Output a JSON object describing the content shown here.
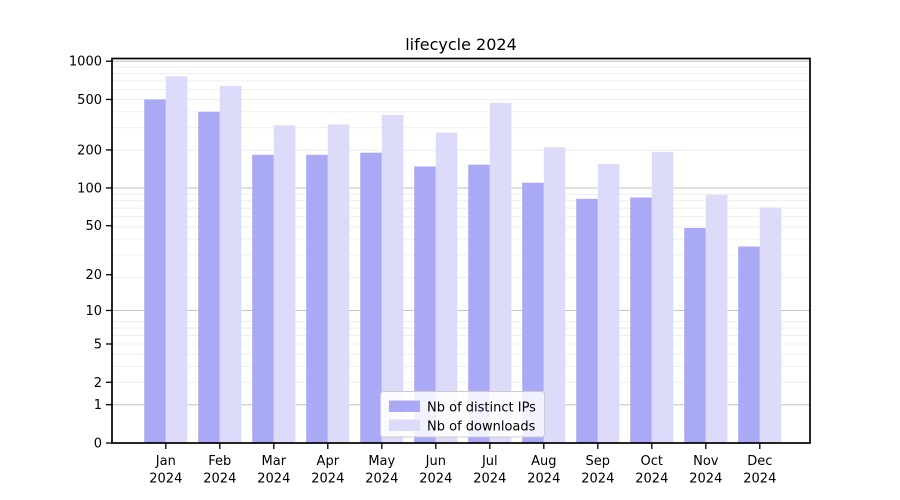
{
  "chart_data": {
    "type": "bar",
    "title": "lifecycle 2024",
    "categories": [
      "Jan",
      "Feb",
      "Mar",
      "Apr",
      "May",
      "Jun",
      "Jul",
      "Aug",
      "Sep",
      "Oct",
      "Nov",
      "Dec"
    ],
    "category_year": "2024",
    "series": [
      {
        "name": "Nb of distinct IPs",
        "color": "#a9a9f6",
        "values": [
          500,
          400,
          183,
          183,
          190,
          148,
          153,
          110,
          82,
          84,
          48,
          34
        ]
      },
      {
        "name": "Nb of downloads",
        "color": "#dcdcfa",
        "values": [
          760,
          640,
          313,
          318,
          377,
          274,
          470,
          210,
          155,
          193,
          88,
          70
        ]
      }
    ],
    "xlabel": "",
    "ylabel": "",
    "y_axis": {
      "ticks": [
        0,
        1,
        2,
        5,
        10,
        20,
        50,
        100,
        200,
        500,
        1000
      ],
      "scale": "log10(value+1)",
      "ylim": [
        0,
        1050
      ],
      "major_gridlines": [
        1,
        10,
        100,
        1000
      ]
    },
    "grid": true,
    "legend": {
      "position": "lower-center"
    }
  }
}
